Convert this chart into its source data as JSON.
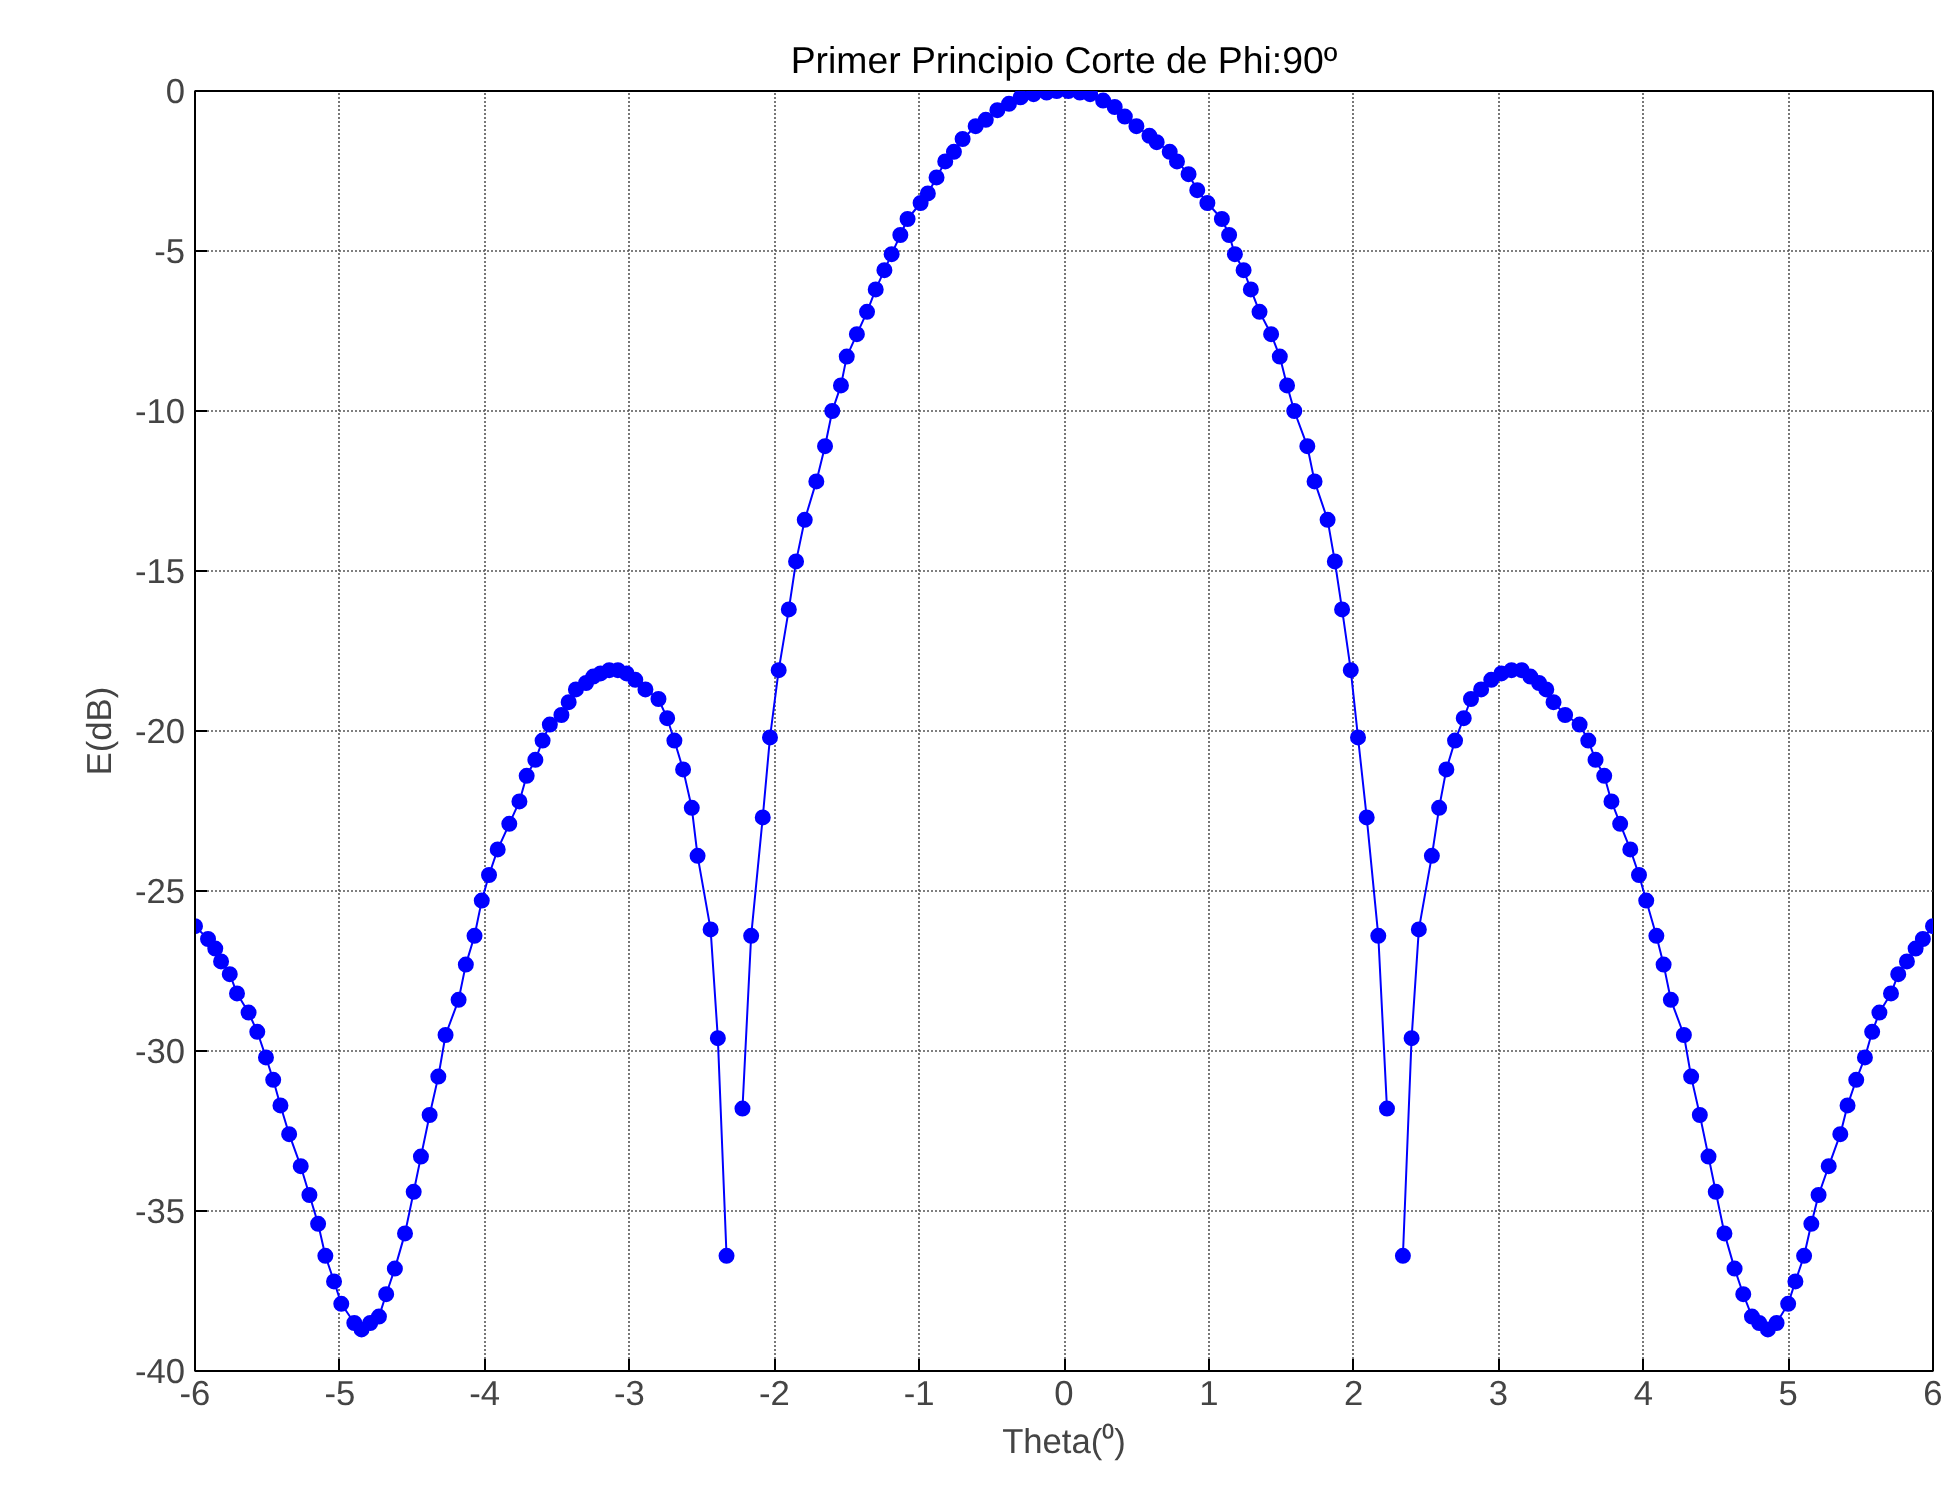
{
  "chart_data": {
    "type": "line",
    "title": "Primer Principio Corte de Phi:90º",
    "xlabel": "Theta(⁰)",
    "ylabel": "E(dB)",
    "xlim": [
      -6,
      6
    ],
    "ylim": [
      -40,
      0
    ],
    "xticks": [
      -6,
      -5,
      -4,
      -3,
      -2,
      -1,
      0,
      1,
      2,
      3,
      4,
      5,
      6
    ],
    "yticks": [
      -40,
      -35,
      -30,
      -25,
      -20,
      -15,
      -10,
      -5,
      0
    ],
    "grid": true,
    "marker": "circle",
    "line_style": "solid",
    "series": [
      {
        "color": "#0000ff",
        "x": [
          -6,
          -5.91,
          -5.86,
          -5.82,
          -5.76,
          -5.71,
          -5.63,
          -5.57,
          -5.51,
          -5.46,
          -5.41,
          -5.35,
          -5.27,
          -5.21,
          -5.15,
          -5.1,
          -5.04,
          -4.99,
          -4.9,
          -4.85,
          -4.79,
          -4.73,
          -4.68,
          -4.62,
          -4.55,
          -4.49,
          -4.44,
          -4.38,
          -4.32,
          -4.27,
          -4.18,
          -4.13,
          -4.07,
          -4.02,
          -3.97,
          -3.91,
          -3.83,
          -3.76,
          -3.71,
          -3.65,
          -3.6,
          -3.55,
          -3.47,
          -3.42,
          -3.37,
          -3.3,
          -3.25,
          -3.2,
          -3.14,
          -3.08,
          -3.02,
          -2.96,
          -2.89,
          -2.8,
          -2.74,
          -2.69,
          -2.63,
          -2.57,
          -2.53,
          -2.44,
          -2.39,
          -2.33,
          -2.28,
          -2.22,
          -2.16,
          -2.08,
          -2.03,
          -1.97,
          -1.9,
          -1.85,
          -1.79,
          -1.71,
          -1.65,
          -1.6,
          -1.54,
          -1.5,
          -1.43,
          -1.36,
          -1.3,
          -1.24,
          -1.19,
          -1.13,
          -1.08,
          -0.99,
          -0.94,
          -0.88,
          -0.82,
          -0.76,
          -0.7,
          -0.61,
          -0.54,
          -0.46,
          -0.38,
          -0.3,
          -0.21,
          -0.12,
          -0.05,
          0.03,
          0.11,
          0.18,
          0.27,
          0.35,
          0.42,
          0.5,
          0.59,
          0.64,
          0.73,
          0.78,
          0.86,
          0.92,
          0.99,
          1.09,
          1.14,
          1.18,
          1.24,
          1.29,
          1.35,
          1.43,
          1.49,
          1.54,
          1.59,
          1.68,
          1.73,
          1.82,
          1.87,
          1.92,
          1.98,
          2.03,
          2.09,
          2.17,
          2.23,
          2.28,
          2.34,
          2.4,
          2.45,
          2.54,
          2.59,
          2.64,
          2.7,
          2.76,
          2.81,
          2.88,
          2.95,
          3.02,
          3.09,
          3.16,
          3.22,
          3.28,
          3.33,
          3.38,
          3.46,
          3.56,
          3.62,
          3.67,
          3.73,
          3.78,
          3.84,
          3.91,
          3.97,
          4.02,
          4.09,
          4.14,
          4.19,
          4.28,
          4.33,
          4.39,
          4.45,
          4.5,
          4.56,
          4.63,
          4.69,
          4.75,
          4.8,
          4.86,
          4.92,
          5.0,
          5.05,
          5.11,
          5.16,
          5.21,
          5.28,
          5.36,
          5.41,
          5.47,
          5.53,
          5.58,
          5.63,
          5.71,
          5.76,
          5.82,
          5.88,
          5.93,
          6.0
        ],
        "values": [
          -26.1,
          -26.5,
          -26.8,
          -27.2,
          -27.6,
          -28.2,
          -28.8,
          -29.4,
          -30.2,
          -30.9,
          -31.7,
          -32.6,
          -33.6,
          -34.5,
          -35.4,
          -36.4,
          -37.2,
          -37.9,
          -38.5,
          -38.7,
          -38.5,
          -38.3,
          -37.6,
          -36.8,
          -35.7,
          -34.4,
          -33.3,
          -32.0,
          -30.8,
          -29.5,
          -28.4,
          -27.3,
          -26.4,
          -25.3,
          -24.5,
          -23.7,
          -22.9,
          -22.2,
          -21.4,
          -20.9,
          -20.3,
          -19.8,
          -19.5,
          -19.1,
          -18.7,
          -18.5,
          -18.3,
          -18.2,
          -18.1,
          -18.1,
          -18.2,
          -18.4,
          -18.7,
          -19.0,
          -19.6,
          -20.3,
          -21.2,
          -22.4,
          -23.9,
          -26.2,
          -29.6,
          -36.4,
          null,
          -31.8,
          -26.4,
          -22.7,
          -20.2,
          -18.1,
          -16.2,
          -14.7,
          -13.4,
          -12.2,
          -11.1,
          -10.0,
          -9.2,
          -8.3,
          -7.6,
          -6.9,
          -6.2,
          -5.6,
          -5.1,
          -4.5,
          -4.0,
          -3.5,
          -3.2,
          -2.7,
          -2.2,
          -1.9,
          -1.5,
          -1.1,
          -0.9,
          -0.6,
          -0.4,
          -0.2,
          -0.1,
          -0.05,
          0,
          0,
          -0.05,
          -0.1,
          -0.3,
          -0.5,
          -0.8,
          -1.1,
          -1.4,
          -1.6,
          -1.9,
          -2.2,
          -2.6,
          -3.1,
          -3.5,
          -4.0,
          -4.5,
          -5.1,
          -5.6,
          -6.2,
          -6.9,
          -7.6,
          -8.3,
          -9.2,
          -10.0,
          -11.1,
          -12.2,
          -13.4,
          -14.7,
          -16.2,
          -18.1,
          -20.2,
          -22.7,
          -26.4,
          -31.8,
          null,
          -36.4,
          -29.6,
          -26.2,
          -23.9,
          -22.4,
          -21.2,
          -20.3,
          -19.6,
          -19.0,
          -18.7,
          -18.4,
          -18.2,
          -18.1,
          -18.1,
          -18.3,
          -18.5,
          -18.7,
          -19.1,
          -19.5,
          -19.8,
          -20.3,
          -20.9,
          -21.4,
          -22.2,
          -22.9,
          -23.7,
          -24.5,
          -25.3,
          -26.4,
          -27.3,
          -28.4,
          -29.5,
          -30.8,
          -32.0,
          -33.3,
          -34.4,
          -35.7,
          -36.8,
          -37.6,
          -38.3,
          -38.5,
          -38.7,
          -38.5,
          -37.9,
          -37.2,
          -36.4,
          -35.4,
          -34.5,
          -33.6,
          -32.6,
          -31.7,
          -30.9,
          -30.2,
          -29.4,
          -28.8,
          -28.2,
          -27.6,
          -27.2,
          -26.8,
          -26.5,
          -26.1
        ]
      }
    ]
  }
}
